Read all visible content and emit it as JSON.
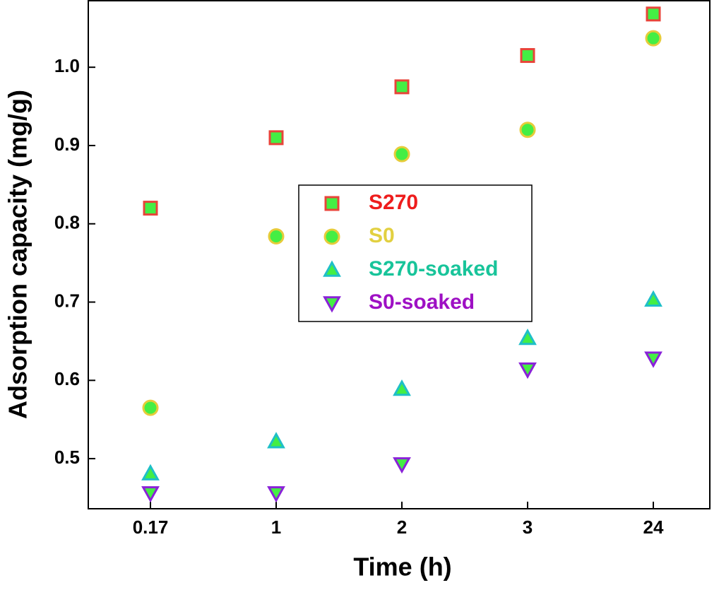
{
  "chart_data": {
    "type": "scatter",
    "x_label": "Time (h)",
    "y_label": "Adsorption capacity (mg/g)",
    "categories": [
      "0.17",
      "1",
      "2",
      "3",
      "24"
    ],
    "ylim": [
      0.436,
      1.085
    ],
    "yticks": [
      0.5,
      0.6,
      0.7,
      0.8,
      0.9,
      {
        "value": 1.0,
        "label": "1.0"
      }
    ],
    "marker_fill": "#44ee44",
    "series": [
      {
        "name": "S270",
        "color": "#e8443a",
        "label_color": "#ee1c1c",
        "marker": "square",
        "values": [
          0.82,
          0.91,
          0.975,
          1.015,
          1.068
        ]
      },
      {
        "name": "S0",
        "color": "#e6cc3a",
        "label_color": "#e2d040",
        "marker": "circle",
        "values": [
          0.565,
          0.784,
          0.889,
          0.92,
          1.037
        ]
      },
      {
        "name": "S270-soaked",
        "color": "#1fbfc8",
        "label_color": "#18c49a",
        "marker": "triangle-up",
        "values": [
          0.481,
          0.522,
          0.589,
          0.654,
          0.703
        ]
      },
      {
        "name": "S0-soaked",
        "color": "#8a22d8",
        "label_color": "#9e10c4",
        "marker": "triangle-down",
        "values": [
          0.456,
          0.456,
          0.493,
          0.614,
          0.628
        ]
      }
    ]
  }
}
